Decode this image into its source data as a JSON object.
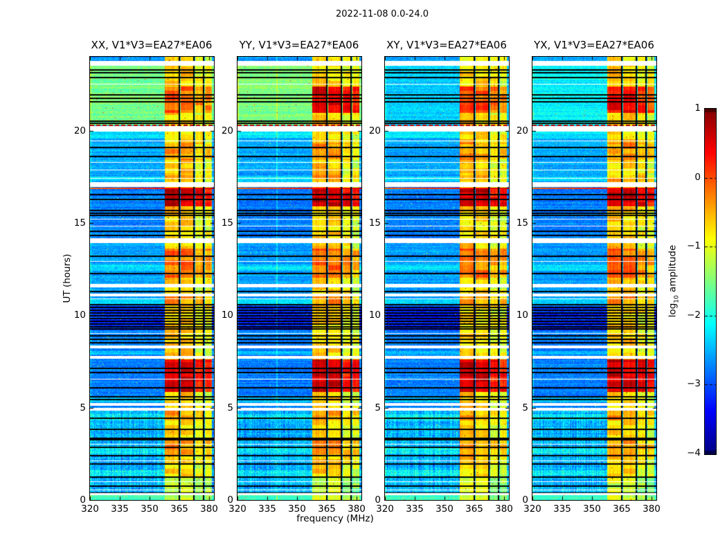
{
  "chart_data": {
    "type": "heatmap",
    "subtype": "dynamic-spectrum-grid",
    "suptitle": "2022-11-08 0.0-24.0",
    "xlabel": "frequency (MHz)",
    "ylabel": "UT (hours)",
    "x_range": [
      320,
      382.5
    ],
    "y_range": [
      0,
      24
    ],
    "x_ticks": [
      320,
      335,
      350,
      365,
      380
    ],
    "y_ticks": [
      0,
      5,
      10,
      15,
      20
    ],
    "colormap": "jet",
    "value_range": [
      -4,
      1
    ],
    "colorbar": {
      "ticks": [
        1,
        0,
        -1,
        -2,
        -3,
        -4
      ],
      "label_prefix": "log",
      "label_sub": "10",
      "label_suffix": " amplitude"
    },
    "panels": [
      {
        "id": "XX",
        "label": "XX, V1*V3=EA27*EA06",
        "quiet_day_base": -1.55,
        "evening_event_boost": 0.55,
        "bright_column_mhz": null,
        "seed": 11
      },
      {
        "id": "YY",
        "label": "YY, V1*V3=EA27*EA06",
        "quiet_day_base": -1.5,
        "evening_event_boost": 1.2,
        "bright_column_mhz": 340,
        "seed": 22
      },
      {
        "id": "XY",
        "label": "XY, V1*V3=EA27*EA06",
        "quiet_day_base": -2.35,
        "evening_event_boost": 0.7,
        "bright_column_mhz": null,
        "seed": 33
      },
      {
        "id": "YX",
        "label": "YX, V1*V3=EA27*EA06",
        "quiet_day_base": -2.15,
        "evening_event_boost": 1.05,
        "bright_column_mhz": null,
        "seed": 44
      }
    ],
    "features": {
      "background_regions": [
        {
          "t0": 0.0,
          "t1": 0.3,
          "v": -2.15
        },
        {
          "t0": 0.3,
          "t1": 4.9,
          "v": -2.5,
          "stripe": true
        },
        {
          "t0": 4.9,
          "t1": 9.2,
          "v": -2.75
        },
        {
          "t0": 9.2,
          "t1": 10.5,
          "v": -3.15
        },
        {
          "t0": 10.5,
          "t1": 14.1,
          "v": -2.6
        },
        {
          "t0": 14.1,
          "t1": 17.2,
          "v": -2.75
        },
        {
          "t0": 17.2,
          "t1": 20.3,
          "v": -2.55
        },
        {
          "t0": 20.3,
          "t1": 23.5,
          "v": "panel"
        },
        {
          "t0": 23.5,
          "t1": 24.0,
          "v": -2.6
        }
      ],
      "cyan_rows": [
        [
          0.0,
          0.3
        ],
        [
          1.3,
          1.62
        ],
        [
          2.52,
          2.86
        ],
        [
          4.3,
          4.66
        ],
        [
          5.3,
          5.56
        ],
        [
          7.86,
          8.06
        ],
        [
          10.6,
          10.86
        ],
        [
          12.42,
          12.76
        ],
        [
          17.3,
          17.52
        ],
        [
          19.6,
          19.98
        ]
      ],
      "rfi_band": {
        "base_level": -0.65,
        "segments": [
          {
            "f0": 357.6,
            "f1": 364.7,
            "k": 1.0
          },
          {
            "f0": 365.8,
            "f1": 371.9,
            "k": 0.97
          },
          {
            "f0": 373.1,
            "f1": 377.0,
            "k": 0.82
          },
          {
            "f0": 377.8,
            "f1": 381.3,
            "k": 0.78
          }
        ],
        "black_vlines_mhz": [
          365.2,
          372.5,
          377.4
        ],
        "events": [
          {
            "t0": 5.85,
            "t1": 7.6,
            "dv": 1.25
          },
          {
            "t0": 15.9,
            "t1": 16.9,
            "dv": 1.3
          },
          {
            "t0": 12.05,
            "t1": 13.6,
            "dv": 0.5
          },
          {
            "t0": 20.95,
            "t1": 22.4,
            "dv": "panel"
          },
          {
            "t0": 18.4,
            "t1": 19.35,
            "dv": 0.3
          },
          {
            "t0": 10.5,
            "t1": 11.1,
            "dv": 0.35
          },
          {
            "t0": 2.35,
            "t1": 3.35,
            "dv": 0.3
          },
          {
            "t0": 4.3,
            "t1": 4.9,
            "dv": 0.25
          },
          {
            "t0": 17.25,
            "t1": 17.6,
            "dv": 0.2
          },
          {
            "t0": 0.0,
            "t1": 1.2,
            "dv": -0.45
          },
          {
            "t0": 23.5,
            "t1": 24.0,
            "dv": -0.15
          }
        ]
      },
      "white_gaps": [
        [
          23.55,
          23.76
        ],
        [
          19.99,
          20.26
        ],
        [
          16.99,
          17.21
        ],
        [
          13.95,
          14.16
        ],
        [
          11.54,
          11.71
        ],
        [
          11.08,
          11.16
        ],
        [
          8.24,
          8.36
        ],
        [
          7.69,
          7.81
        ],
        [
          5.14,
          5.26
        ],
        [
          4.88,
          4.97
        ],
        [
          0.31,
          0.38
        ]
      ],
      "white_lines": [
        22.55,
        19.45,
        18.3,
        17.9,
        17.45,
        15.22,
        14.85,
        12.95,
        10.93,
        9.02,
        6.55,
        3.02,
        2.12,
        1.02,
        0.55
      ],
      "black_lines": [
        23.32,
        23.17,
        22.92,
        21.97,
        21.77,
        21.6,
        20.56,
        20.45,
        19.12,
        18.62,
        16.57,
        16.32,
        15.72,
        15.57,
        15.45,
        14.57,
        14.37,
        13.22,
        12.3,
        11.32,
        10.62,
        10.47,
        10.32,
        10.17,
        10.02,
        9.87,
        9.72,
        9.57,
        9.42,
        9.3,
        8.92,
        8.72,
        8.56,
        7.18,
        6.92,
        6.12,
        5.62,
        5.47,
        4.47,
        3.87,
        3.37,
        3.3,
        2.87,
        2.42,
        1.97,
        1.27,
        0.77,
        0.42
      ],
      "orange_line": {
        "t": 16.9,
        "v_left": -0.1,
        "v_right": 0.6
      },
      "red_dashed_line": {
        "t": 20.33,
        "v": 0.75
      }
    }
  }
}
